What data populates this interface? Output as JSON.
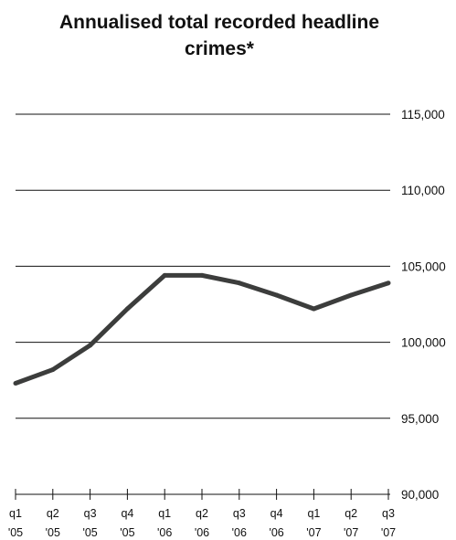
{
  "chart_data": {
    "type": "line",
    "title_lines": [
      "Annualised total recorded headline",
      "crimes*"
    ],
    "categories": [
      [
        "q1",
        "'05"
      ],
      [
        "q2",
        "'05"
      ],
      [
        "q3",
        "'05"
      ],
      [
        "q4",
        "'05"
      ],
      [
        "q1",
        "'06"
      ],
      [
        "q2",
        "'06"
      ],
      [
        "q3",
        "'06"
      ],
      [
        "q4",
        "'06"
      ],
      [
        "q1",
        "'07"
      ],
      [
        "q2",
        "'07"
      ],
      [
        "q3",
        "'07"
      ]
    ],
    "values": [
      97300,
      98200,
      99800,
      102200,
      104400,
      104400,
      103900,
      103100,
      102200,
      103100,
      103900
    ],
    "ylim": [
      90000,
      115000
    ],
    "yticks": [
      "90,000",
      "95,000",
      "100,000",
      "105,000",
      "110,000",
      "115,000"
    ],
    "grid": true,
    "line_color": "#3c3d3c"
  }
}
